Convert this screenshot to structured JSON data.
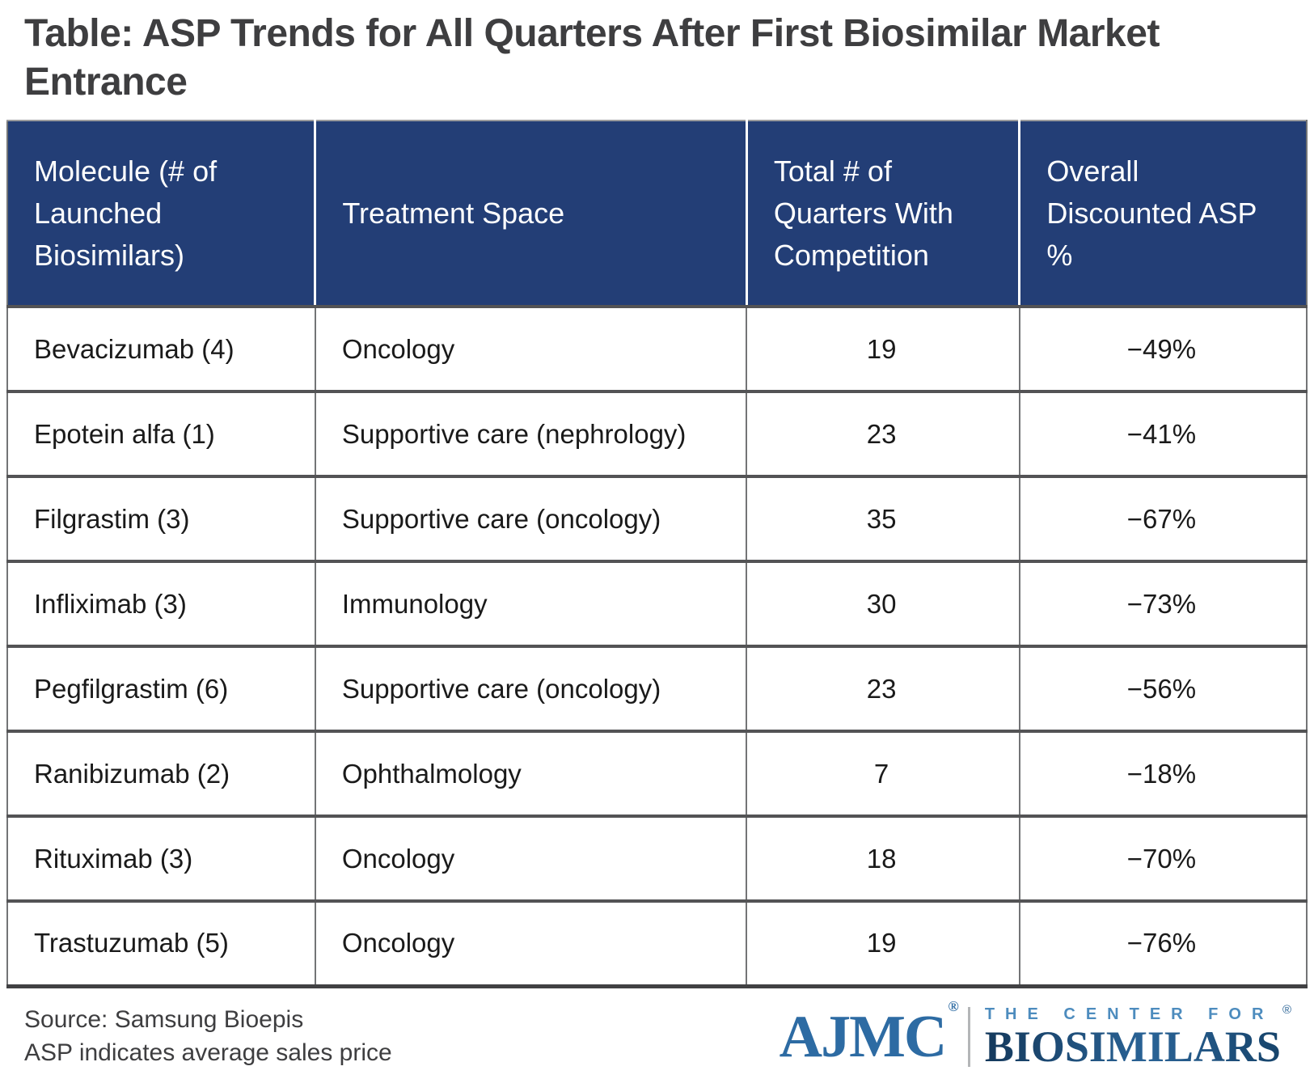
{
  "title": "Table: ASP Trends for All Quarters After First Biosimilar Market Entrance",
  "table": {
    "columns": [
      "Molecule (# of Launched Biosimilars)",
      "Treatment Space",
      "Total # of Quarters With Competition",
      "Overall Discounted ASP %"
    ],
    "rows": [
      {
        "molecule": "Bevacizumab (4)",
        "space": "Oncology",
        "quarters": "19",
        "asp": "−49%"
      },
      {
        "molecule": "Epotein alfa (1)",
        "space": "Supportive care (nephrology)",
        "quarters": "23",
        "asp": "−41%"
      },
      {
        "molecule": "Filgrastim (3)",
        "space": "Supportive care (oncology)",
        "quarters": "35",
        "asp": "−67%"
      },
      {
        "molecule": "Infliximab (3)",
        "space": "Immunology",
        "quarters": "30",
        "asp": "−73%"
      },
      {
        "molecule": "Pegfilgrastim (6)",
        "space": "Supportive care (oncology)",
        "quarters": "23",
        "asp": "−56%"
      },
      {
        "molecule": "Ranibizumab (2)",
        "space": "Ophthalmology",
        "quarters": "7",
        "asp": "−18%"
      },
      {
        "molecule": "Rituximab (3)",
        "space": "Oncology",
        "quarters": "18",
        "asp": "−70%"
      },
      {
        "molecule": "Trastuzumab (5)",
        "space": "Oncology",
        "quarters": "19",
        "asp": "−76%"
      }
    ]
  },
  "footer": {
    "source": "Source: Samsung Bioepis",
    "note": "ASP indicates average sales price"
  },
  "logo": {
    "ajmc": "AJMC",
    "ajmc_reg": "®",
    "center_for": "THE CENTER FOR",
    "biosimilars": "BIOSIMILARS",
    "biosimilars_reg": "®"
  },
  "colors": {
    "header_bg": "#233e76",
    "header_text": "#ffffff",
    "title_text": "#3e3e40",
    "body_text": "#1a1a1a",
    "row_border": "#535355",
    "column_border": "#737476",
    "ajmc_blue": "#2d6ba3",
    "center_for_blue": "#4d8cbe",
    "biosimilars_navy": "#14395c"
  }
}
